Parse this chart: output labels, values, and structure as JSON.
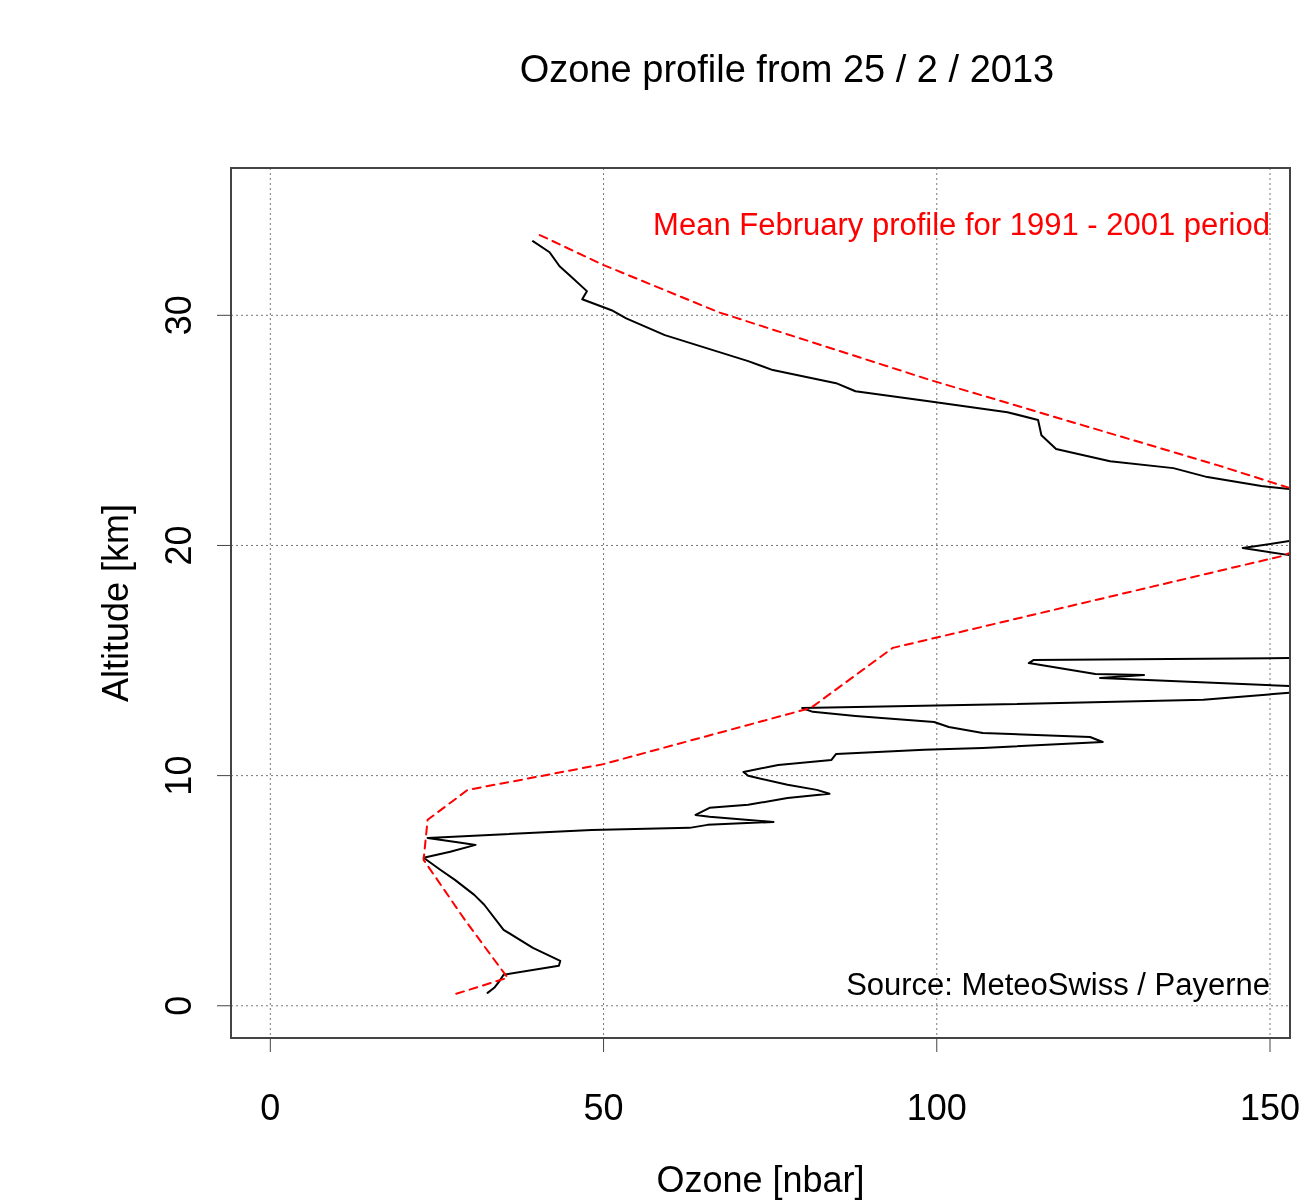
{
  "chart_data": {
    "type": "line",
    "title": "Ozone profile from 25 / 2 / 2013",
    "xlabel": "Ozone [nbar]",
    "ylabel": "Altitude [km]",
    "xlim": [
      -5.9,
      153
    ],
    "ylim": [
      -1.4,
      36.4
    ],
    "xticks": [
      0,
      50,
      100,
      150
    ],
    "yticks": [
      0,
      10,
      20,
      30
    ],
    "grid": true,
    "annotations": [
      "Source: MeteoSwiss / Payerne"
    ],
    "series": [
      {
        "color": "#000000",
        "x": [
          32.6,
          33.6,
          34.3,
          35.0,
          43.3,
          43.5,
          39.4,
          35.0,
          32.1,
          30.6,
          27.7,
          25.5,
          23.0,
          27.0,
          30.8,
          28.6,
          23.6,
          48.2,
          62.9,
          65.6,
          75.5,
          65.9,
          63.8,
          65.9,
          71.7,
          77.6,
          83.9,
          82.0,
          77.6,
          71.7,
          71.0,
          76.2,
          84.2,
          84.9,
          98.1,
          106.9,
          124.9,
          123.0,
          106.9,
          101.8,
          99.6,
          87.8,
          81.4,
          79.8,
          110,
          140,
          152.9,
          null,
          152.9,
          124.5,
          131.1,
          123.8,
          113.8,
          114.5,
          152.9,
          null,
          152.9,
          145.9,
          152.9,
          null,
          152.9,
          148.7,
          140.6,
          135.5,
          126.0,
          117.9,
          115.7,
          115.2,
          110.6,
          98.8,
          87.8,
          84.9,
          75.4,
          71.7,
          59.2,
          53.4,
          51.2,
          46.8,
          47.5,
          44.9,
          43.4,
          41.9,
          39.4
        ],
        "values": [
          0.56,
          0.78,
          1.04,
          1.35,
          1.74,
          1.95,
          2.52,
          3.3,
          4.39,
          4.82,
          5.47,
          5.91,
          6.43,
          6.69,
          6.99,
          7.08,
          7.29,
          7.64,
          7.73,
          7.86,
          7.99,
          8.21,
          8.29,
          8.6,
          8.73,
          9.03,
          9.21,
          9.38,
          9.6,
          9.99,
          10.16,
          10.46,
          10.68,
          10.94,
          11.12,
          11.2,
          11.46,
          11.68,
          11.85,
          12.11,
          12.33,
          12.59,
          12.77,
          12.94,
          13.1,
          13.3,
          13.6,
          null,
          13.89,
          14.24,
          14.37,
          14.42,
          14.89,
          15.02,
          15.11,
          null,
          19.58,
          19.89,
          20.19,
          null,
          22.45,
          22.58,
          22.97,
          23.36,
          23.66,
          24.19,
          24.79,
          25.45,
          25.79,
          26.27,
          26.7,
          27.05,
          27.62,
          28.01,
          29.14,
          29.87,
          30.22,
          30.7,
          31.05,
          31.74,
          32.13,
          32.74,
          33.22
        ]
      },
      {
        "name": "Mean February profile for 1991 - 2001 period",
        "color": "#ff0000",
        "line_style": "dashed",
        "x": [
          27.9,
          35.6,
          33.6,
          29.2,
          23.0,
          23.6,
          29.6,
          39.9,
          50,
          81.1,
          93.4,
          100,
          151.8,
          152.9,
          null,
          152.9,
          142.1,
          99.1,
          67.3,
          49.7,
          40.2
        ],
        "values": [
          0.52,
          1.22,
          2.0,
          3.73,
          6.34,
          8.08,
          9.38,
          9.94,
          10.5,
          12.94,
          15.55,
          16.0,
          19.54,
          19.67,
          null,
          22.5,
          23.49,
          27.18,
          30.13,
          32.22,
          33.52
        ]
      }
    ]
  }
}
